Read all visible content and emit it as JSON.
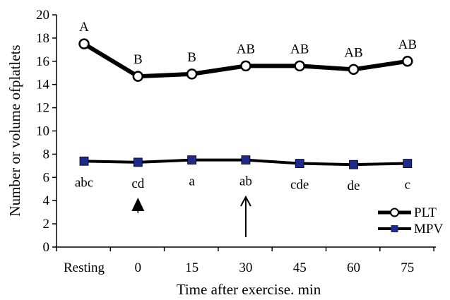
{
  "chart_data": {
    "type": "line",
    "title": "",
    "xlabel": "Time after exercise. min",
    "ylabel": "Number or volume ofplatlets",
    "categories": [
      "Resting",
      "0",
      "15",
      "30",
      "45",
      "60",
      "75"
    ],
    "ylim": [
      0,
      20
    ],
    "yticks": [
      "0",
      "2",
      "4",
      "6",
      "8",
      "10",
      "12",
      "14",
      "16",
      "18",
      "20"
    ],
    "grid": false,
    "legend": "bottom-right",
    "series": [
      {
        "name": "PLT",
        "values": [
          17.5,
          14.7,
          14.9,
          15.6,
          15.6,
          15.3,
          16.0
        ],
        "marker": "open-circle",
        "color": "#000000",
        "labels": [
          "A",
          "B",
          "B",
          "AB",
          "AB",
          "AB",
          "AB"
        ]
      },
      {
        "name": "MPV",
        "values": [
          7.4,
          7.3,
          7.5,
          7.5,
          7.2,
          7.1,
          7.2
        ],
        "marker": "filled-square",
        "color": "#000000",
        "marker_color": "#1e2a8c",
        "labels": [
          "abc",
          "cd",
          "a",
          "ab",
          "cde",
          "de",
          "c"
        ]
      }
    ],
    "annotations": [
      {
        "type": "arrowhead",
        "category": "0"
      },
      {
        "type": "arrow",
        "category": "30"
      }
    ]
  }
}
